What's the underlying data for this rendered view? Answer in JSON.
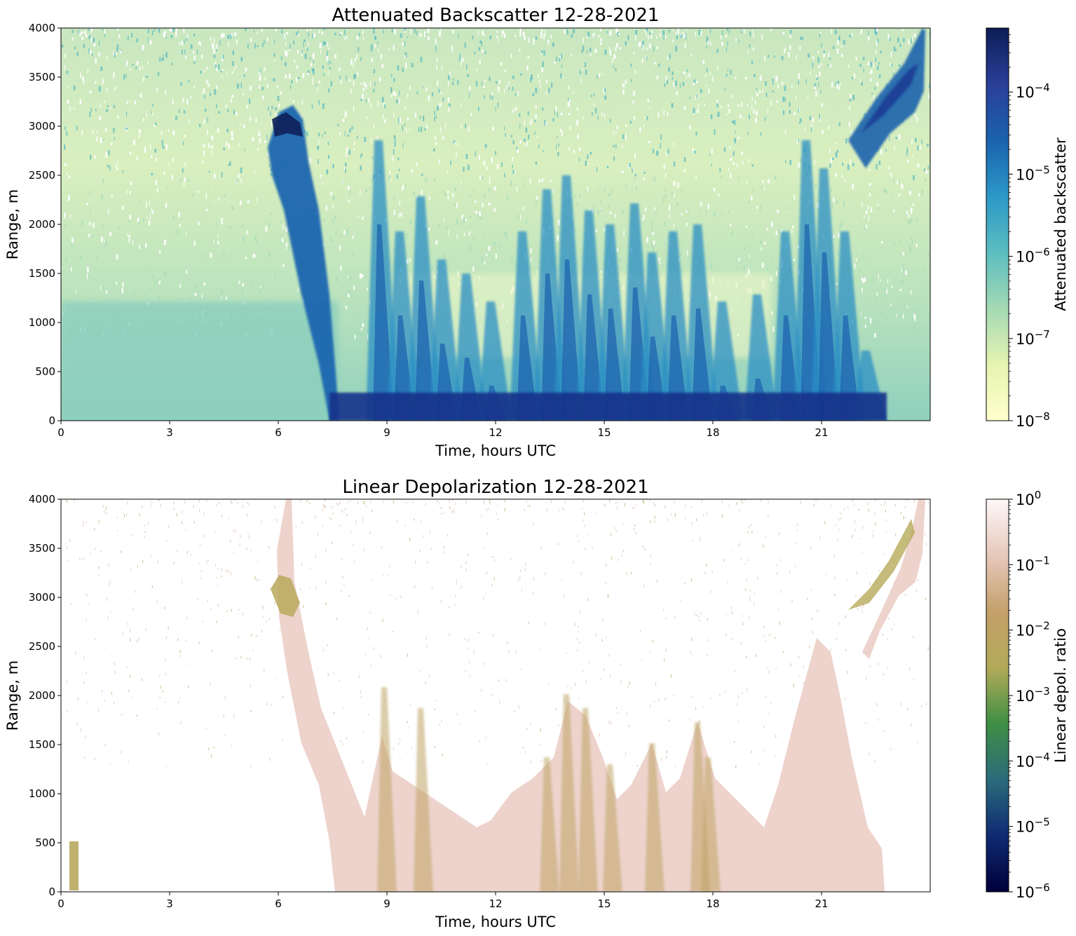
{
  "chart_data": [
    {
      "type": "heatmap",
      "title": "Attenuated Backscatter 12-28-2021",
      "xlabel": "Time, hours UTC",
      "ylabel": "Range, m",
      "xlim": [
        0,
        24
      ],
      "ylim": [
        0,
        4000
      ],
      "xticks": [
        0,
        3,
        6,
        9,
        12,
        15,
        18,
        21
      ],
      "xtick_labels": [
        "0",
        "3",
        "6",
        "9",
        "12",
        "15",
        "18",
        "21"
      ],
      "yticks": [
        0,
        500,
        1000,
        1500,
        2000,
        2500,
        3000,
        3500,
        4000
      ],
      "ytick_labels": [
        "0",
        "500",
        "1000",
        "1500",
        "2000",
        "2500",
        "3000",
        "3500",
        "4000"
      ],
      "grid": false,
      "colorbar": {
        "label": "Attenuated backscatter",
        "scale": "log",
        "range": [
          1e-08,
          0.0006
        ],
        "ticks": [
          -8,
          -7,
          -6,
          -5,
          -4
        ],
        "tick_labels": [
          {
            "base": "10",
            "exp": "−8"
          },
          {
            "base": "10",
            "exp": "−7"
          },
          {
            "base": "10",
            "exp": "−6"
          },
          {
            "base": "10",
            "exp": "−5"
          },
          {
            "base": "10",
            "exp": "−4"
          }
        ],
        "colors": [
          "#ffffcc",
          "#e6f4b1",
          "#a4d9b3",
          "#5bbdc0",
          "#2c98c7",
          "#1a62ad",
          "#2a3f98",
          "#0d1d56"
        ]
      },
      "features": [
        {
          "name": "surface aerosol layer",
          "x": [
            0,
            7.6
          ],
          "range_top": 1150
        },
        {
          "name": "descending cloud band",
          "x": [
            5.8,
            7.7
          ],
          "range_top": 3300
        },
        {
          "name": "fall streaks",
          "x": [
            7.7,
            22.7
          ],
          "range_top": 2800
        },
        {
          "name": "upper cloud",
          "x": [
            21.5,
            24
          ],
          "range_top": 4000
        }
      ]
    },
    {
      "type": "heatmap",
      "title": "Linear Depolarization 12-28-2021",
      "xlabel": "Time, hours UTC",
      "ylabel": "Range, m",
      "xlim": [
        0,
        24
      ],
      "ylim": [
        0,
        4000
      ],
      "xticks": [
        0,
        3,
        6,
        9,
        12,
        15,
        18,
        21
      ],
      "xtick_labels": [
        "0",
        "3",
        "6",
        "9",
        "12",
        "15",
        "18",
        "21"
      ],
      "yticks": [
        0,
        500,
        1000,
        1500,
        2000,
        2500,
        3000,
        3500,
        4000
      ],
      "ytick_labels": [
        "0",
        "500",
        "1000",
        "1500",
        "2000",
        "2500",
        "3000",
        "3500",
        "4000"
      ],
      "grid": false,
      "colorbar": {
        "label": "Linear depol. ratio",
        "scale": "log",
        "range": [
          1e-06,
          1
        ],
        "ticks": [
          -6,
          -5,
          -4,
          -3,
          -2,
          -1,
          0
        ],
        "tick_labels": [
          {
            "base": "10",
            "exp": "−6"
          },
          {
            "base": "10",
            "exp": "−5"
          },
          {
            "base": "10",
            "exp": "−4"
          },
          {
            "base": "10",
            "exp": "−3"
          },
          {
            "base": "10",
            "exp": "−2"
          },
          {
            "base": "10",
            "exp": "−1"
          },
          {
            "base": "10",
            "exp": "0"
          }
        ],
        "colors": [
          "#00003a",
          "#0f2a72",
          "#2a6b7a",
          "#3f8f45",
          "#b2aa58",
          "#c4a06a",
          "#e7c8bc",
          "#fdf8f8"
        ]
      }
    }
  ]
}
